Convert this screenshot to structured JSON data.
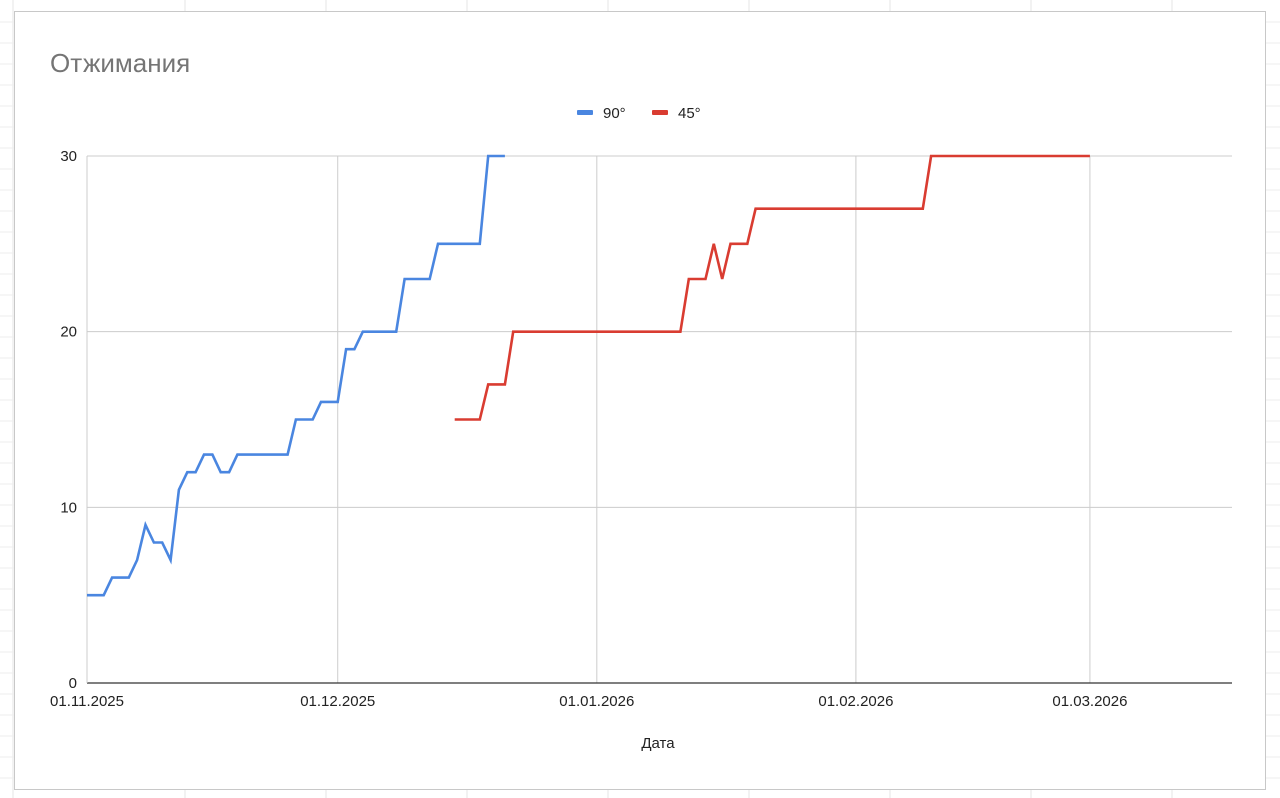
{
  "chart_data": {
    "type": "line",
    "title": "Отжимания",
    "xlabel": "Дата",
    "ylabel": "",
    "ylim": [
      0,
      30
    ],
    "yticks": [
      "0",
      "10",
      "20",
      "30"
    ],
    "xlim": [
      "2025-11-01",
      "2026-03-18"
    ],
    "xticks": [
      {
        "date": "2025-11-01",
        "label": "01.11.2025"
      },
      {
        "date": "2025-12-01",
        "label": "01.12.2025"
      },
      {
        "date": "2026-01-01",
        "label": "01.01.2026"
      },
      {
        "date": "2026-02-01",
        "label": "01.02.2026"
      },
      {
        "date": "2026-03-01",
        "label": "01.03.2026"
      }
    ],
    "grid": true,
    "legend_position": "top",
    "series": [
      {
        "name": "90°",
        "color": "#4a86e0",
        "points": [
          [
            "2025-11-01",
            5
          ],
          [
            "2025-11-03",
            5
          ],
          [
            "2025-11-04",
            6
          ],
          [
            "2025-11-06",
            6
          ],
          [
            "2025-11-07",
            7
          ],
          [
            "2025-11-08",
            9
          ],
          [
            "2025-11-09",
            8
          ],
          [
            "2025-11-10",
            8
          ],
          [
            "2025-11-11",
            7
          ],
          [
            "2025-11-12",
            11
          ],
          [
            "2025-11-13",
            12
          ],
          [
            "2025-11-14",
            12
          ],
          [
            "2025-11-15",
            13
          ],
          [
            "2025-11-16",
            13
          ],
          [
            "2025-11-17",
            12
          ],
          [
            "2025-11-18",
            12
          ],
          [
            "2025-11-19",
            13
          ],
          [
            "2025-11-25",
            13
          ],
          [
            "2025-11-26",
            15
          ],
          [
            "2025-11-28",
            15
          ],
          [
            "2025-11-29",
            16
          ],
          [
            "2025-12-01",
            16
          ],
          [
            "2025-12-02",
            19
          ],
          [
            "2025-12-03",
            19
          ],
          [
            "2025-12-04",
            20
          ],
          [
            "2025-12-08",
            20
          ],
          [
            "2025-12-09",
            23
          ],
          [
            "2025-12-12",
            23
          ],
          [
            "2025-12-13",
            25
          ],
          [
            "2025-12-18",
            25
          ],
          [
            "2025-12-19",
            30
          ],
          [
            "2025-12-21",
            30
          ]
        ]
      },
      {
        "name": "45°",
        "color": "#d93c31",
        "points": [
          [
            "2025-12-15",
            15
          ],
          [
            "2025-12-18",
            15
          ],
          [
            "2025-12-19",
            17
          ],
          [
            "2025-12-21",
            17
          ],
          [
            "2025-12-22",
            20
          ],
          [
            "2026-01-11",
            20
          ],
          [
            "2026-01-12",
            23
          ],
          [
            "2026-01-14",
            23
          ],
          [
            "2026-01-15",
            25
          ],
          [
            "2026-01-16",
            23
          ],
          [
            "2026-01-17",
            25
          ],
          [
            "2026-01-19",
            25
          ],
          [
            "2026-01-20",
            27
          ],
          [
            "2026-02-09",
            27
          ],
          [
            "2026-02-10",
            30
          ],
          [
            "2026-03-01",
            30
          ]
        ]
      }
    ]
  }
}
